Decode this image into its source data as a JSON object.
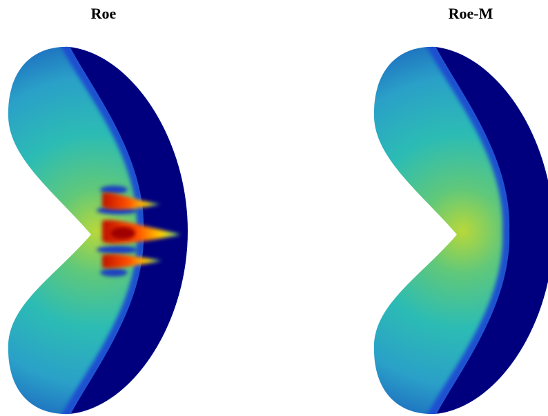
{
  "panels": [
    {
      "title": "Roe"
    },
    {
      "title": "Roe-M"
    }
  ]
}
